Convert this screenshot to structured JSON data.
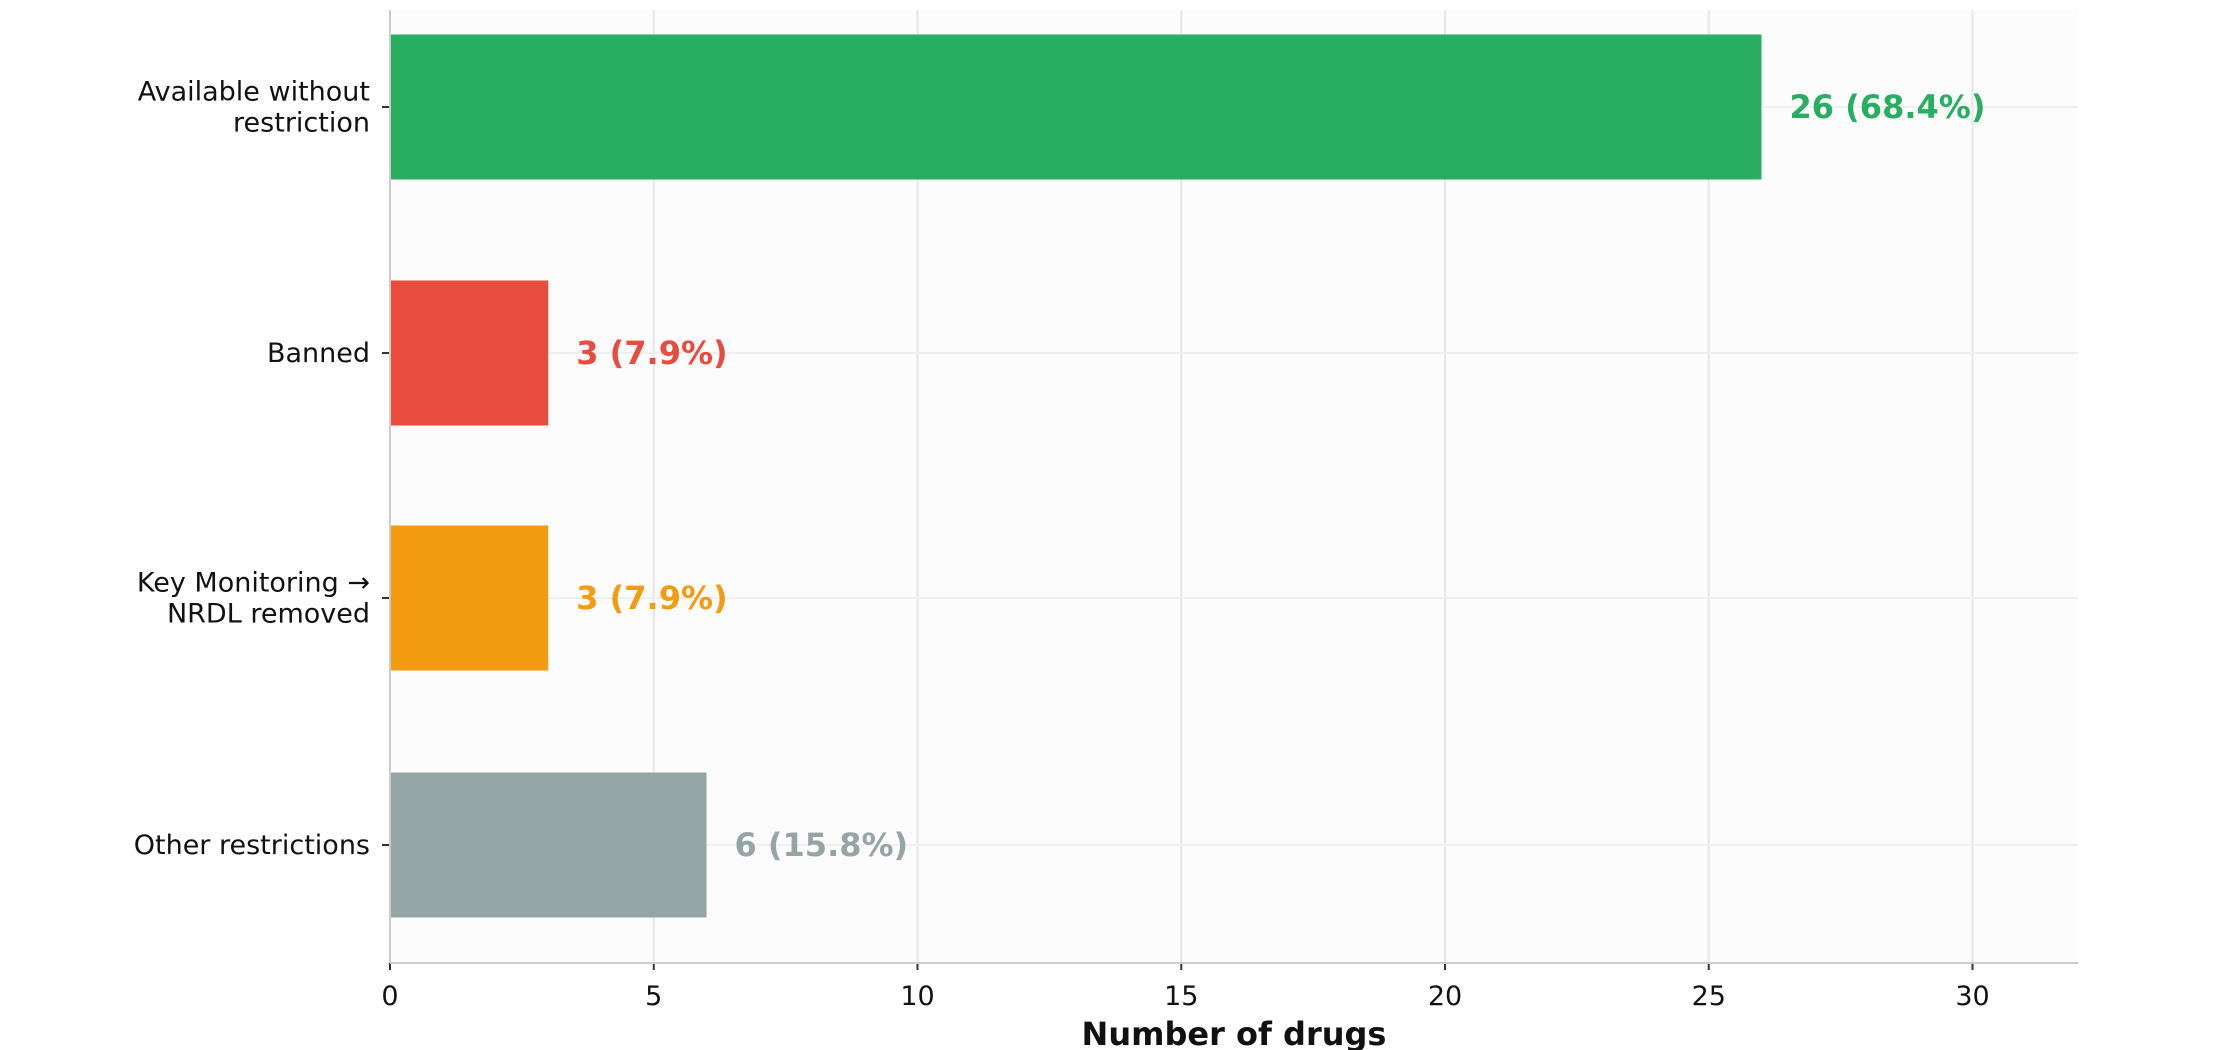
{
  "chart_data": {
    "type": "bar",
    "orientation": "horizontal",
    "title": "",
    "xlabel": "Number of drugs",
    "ylabel": "",
    "xlim": [
      0,
      32
    ],
    "xticks": [
      0,
      5,
      10,
      15,
      20,
      25,
      30
    ],
    "grid": true,
    "legend": "none",
    "categories": [
      [
        "Available without",
        "restriction"
      ],
      [
        "Banned"
      ],
      [
        "Key Monitoring →",
        "NRDL removed"
      ],
      [
        "Other restrictions"
      ]
    ],
    "values": [
      26,
      3,
      3,
      6
    ],
    "data_labels": [
      "26 (68.4%)",
      "3 (7.9%)",
      "3 (7.9%)",
      "6 (15.8%)"
    ],
    "colors": [
      "#27ae60",
      "#e74c3c",
      "#f39c12",
      "#95a5a6"
    ]
  }
}
